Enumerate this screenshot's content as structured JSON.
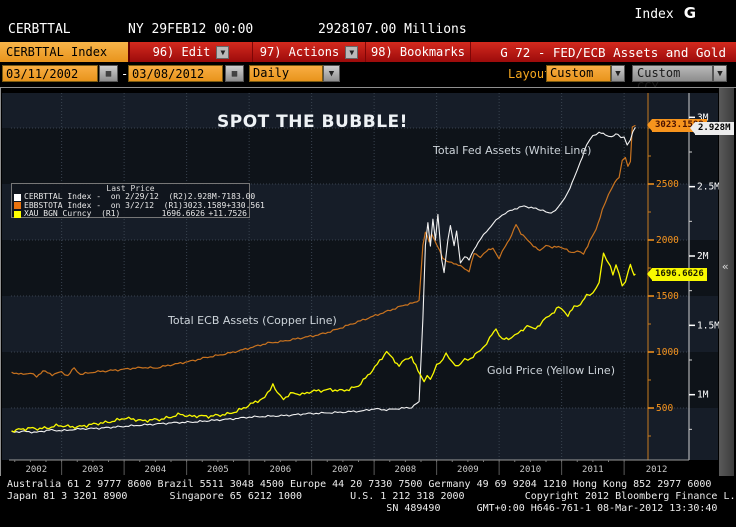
{
  "titlebar": {
    "ticker": "CERBTTAL",
    "session": "NY 29FEB12 00:00",
    "value": "2928107.00 Millions",
    "index_label": "Index",
    "index_key": "G"
  },
  "menubar": {
    "security": "CERBTTAL Index",
    "edit": "96) Edit",
    "actions": "97) Actions",
    "bookmarks": "98) Bookmarks",
    "dropdown_glyph": "▼",
    "screen_title": "G 72 - FED/ECB Assets and Gold"
  },
  "toolbar": {
    "date_from": "03/11/2002",
    "date_to": "03/08/2012",
    "separator": "-",
    "calendar_glyph": "▦",
    "period": "Daily",
    "arrow_glyph": "▼",
    "layout_label": "Layout",
    "layout_value": "Custom",
    "ccy_value": "Custom CCY"
  },
  "legend": {
    "title": "Last Price",
    "rows": [
      {
        "name": "CERBTTAL Index -  on 2/29/12  (R2)",
        "value": "2.928M",
        "change": "-7183.00",
        "color": "#ffffff"
      },
      {
        "name": "EBBSTOTA Index -  on 3/2/12  (R1)",
        "value": "3023.1589",
        "change": "+330.561",
        "color": "#e8720e"
      },
      {
        "name": "XAU BGN Curncy  (R1)",
        "value": "1696.6626",
        "change": "+11.7526",
        "color": "#ffff00"
      }
    ]
  },
  "annotations": {
    "headline": "SPOT THE BUBBLE!",
    "fed": "Total Fed Assets (White Line)",
    "ecb": "Total ECB Assets (Copper Line)",
    "gold": "Gold Price (Yellow Line)"
  },
  "tags": {
    "ecb": "3023.1589",
    "fed": "2.928M",
    "gold": "1696.6626",
    "ecb_color": "#f7941d",
    "fed_color": "#ececec",
    "gold_color": "#f8f800"
  },
  "scroll": {
    "collapse_glyph": "«"
  },
  "footer": {
    "line1": "Australia 61 2 9777 8600 Brazil 5511 3048 4500 Europe 44 20 7330 7500 Germany 49 69 9204 1210 Hong Kong 852 2977 6000",
    "line2": "Japan 81 3 3201 8900       Singapore 65 6212 1000        U.S. 1 212 318 2000          Copyright 2012 Bloomberg Finance L.P.",
    "line3": "                                                               SN 489490      GMT+0:00 H646-761-1 08-Mar-2012 13:30:40"
  },
  "chart_data": {
    "type": "line",
    "title": "SPOT THE BUBBLE!",
    "x_axis": {
      "start": 2002.19,
      "end": 2012.19,
      "start_label": "03/11/2002",
      "end_label": "03/08/2012",
      "year_labels": [
        "2002",
        "2003",
        "2004",
        "2005",
        "2006",
        "2007",
        "2008",
        "2009",
        "2010",
        "2011",
        "2012"
      ],
      "gridline_years": [
        2003,
        2004,
        2005,
        2006,
        2007,
        2008,
        2009,
        2010,
        2011,
        2012
      ],
      "grid": true
    },
    "axis_r1": {
      "side": "right-inner",
      "label_color": "#f7941d",
      "line_color": "#c87c20",
      "min": 0,
      "max": 3250,
      "minor_step": 250,
      "ticks": [
        500,
        1000,
        1500,
        2000,
        2500
      ],
      "gridline_values": [
        500,
        1000,
        1500,
        2000,
        2500,
        3000
      ]
    },
    "axis_r2": {
      "side": "right-outer",
      "label_color": "#ffffff",
      "line_color": "#cfcfcf",
      "min": 0.5,
      "max": 3.125,
      "minor_step": 0.25,
      "ticks": [
        {
          "v": 1,
          "label": "1M"
        },
        {
          "v": 1.5,
          "label": "1.5M"
        },
        {
          "v": 2,
          "label": "2M"
        },
        {
          "v": 2.5,
          "label": "2.5M"
        },
        {
          "v": 3,
          "label": "3M"
        }
      ]
    },
    "series": [
      {
        "name": "EBBSTOTA Index",
        "axis": "R1",
        "color": "#c9731f",
        "width": 1.2,
        "jitter": 1.1,
        "last": "3023.1589",
        "points": [
          [
            2002.2,
            820
          ],
          [
            2002.35,
            800
          ],
          [
            2002.5,
            812
          ],
          [
            2002.6,
            778
          ],
          [
            2002.7,
            832
          ],
          [
            2002.85,
            798
          ],
          [
            2003.0,
            822
          ],
          [
            2003.1,
            788
          ],
          [
            2003.2,
            858
          ],
          [
            2003.3,
            800
          ],
          [
            2003.5,
            820
          ],
          [
            2003.7,
            830
          ],
          [
            2003.9,
            840
          ],
          [
            2004.1,
            852
          ],
          [
            2004.3,
            862
          ],
          [
            2004.5,
            856
          ],
          [
            2004.7,
            880
          ],
          [
            2004.9,
            900
          ],
          [
            2005.1,
            922
          ],
          [
            2005.3,
            950
          ],
          [
            2005.5,
            970
          ],
          [
            2005.7,
            992
          ],
          [
            2005.9,
            1020
          ],
          [
            2006.1,
            1050
          ],
          [
            2006.3,
            1080
          ],
          [
            2006.5,
            1092
          ],
          [
            2006.7,
            1112
          ],
          [
            2006.9,
            1132
          ],
          [
            2007.1,
            1152
          ],
          [
            2007.3,
            1182
          ],
          [
            2007.5,
            1222
          ],
          [
            2007.7,
            1262
          ],
          [
            2007.9,
            1302
          ],
          [
            2008.1,
            1342
          ],
          [
            2008.3,
            1382
          ],
          [
            2008.5,
            1422
          ],
          [
            2008.65,
            1440
          ],
          [
            2008.72,
            1462
          ],
          [
            2008.78,
            1950
          ],
          [
            2008.82,
            2070
          ],
          [
            2008.88,
            1990
          ],
          [
            2008.92,
            2058
          ],
          [
            2009.0,
            1958
          ],
          [
            2009.1,
            1840
          ],
          [
            2009.2,
            1800
          ],
          [
            2009.35,
            1780
          ],
          [
            2009.45,
            1740
          ],
          [
            2009.52,
            1725
          ],
          [
            2009.6,
            1878
          ],
          [
            2009.7,
            1850
          ],
          [
            2009.8,
            1900
          ],
          [
            2009.9,
            1930
          ],
          [
            2010.0,
            1832
          ],
          [
            2010.1,
            1950
          ],
          [
            2010.2,
            2040
          ],
          [
            2010.27,
            2140
          ],
          [
            2010.35,
            2060
          ],
          [
            2010.45,
            2000
          ],
          [
            2010.55,
            1950
          ],
          [
            2010.65,
            1900
          ],
          [
            2010.75,
            1958
          ],
          [
            2010.85,
            1930
          ],
          [
            2010.95,
            1945
          ],
          [
            2011.05,
            1920
          ],
          [
            2011.15,
            1890
          ],
          [
            2011.25,
            1900
          ],
          [
            2011.35,
            1875
          ],
          [
            2011.45,
            1990
          ],
          [
            2011.55,
            2090
          ],
          [
            2011.65,
            2270
          ],
          [
            2011.75,
            2400
          ],
          [
            2011.85,
            2520
          ],
          [
            2011.92,
            2560
          ],
          [
            2011.97,
            2700
          ],
          [
            2012.02,
            2740
          ],
          [
            2012.06,
            2660
          ],
          [
            2012.1,
            2700
          ],
          [
            2012.13,
            3010
          ],
          [
            2012.18,
            3023.16
          ]
        ]
      },
      {
        "name": "CERBTTAL Index",
        "axis": "R2",
        "color": "#f2f2f2",
        "width": 1.1,
        "jitter": 1.0,
        "last": "2.928M",
        "points": [
          [
            2002.2,
            0.73
          ],
          [
            2002.4,
            0.735
          ],
          [
            2002.6,
            0.728
          ],
          [
            2002.8,
            0.745
          ],
          [
            2003.0,
            0.74
          ],
          [
            2003.3,
            0.753
          ],
          [
            2003.6,
            0.758
          ],
          [
            2003.9,
            0.768
          ],
          [
            2004.2,
            0.778
          ],
          [
            2004.5,
            0.788
          ],
          [
            2004.8,
            0.798
          ],
          [
            2005.1,
            0.802
          ],
          [
            2005.4,
            0.814
          ],
          [
            2005.7,
            0.824
          ],
          [
            2006.0,
            0.838
          ],
          [
            2006.3,
            0.844
          ],
          [
            2006.6,
            0.85
          ],
          [
            2006.9,
            0.862
          ],
          [
            2007.2,
            0.868
          ],
          [
            2007.5,
            0.874
          ],
          [
            2007.8,
            0.882
          ],
          [
            2008.0,
            0.898
          ],
          [
            2008.2,
            0.89
          ],
          [
            2008.4,
            0.9
          ],
          [
            2008.6,
            0.908
          ],
          [
            2008.72,
            0.95
          ],
          [
            2008.78,
            1.55
          ],
          [
            2008.82,
            2.08
          ],
          [
            2008.86,
            2.24
          ],
          [
            2008.9,
            2.07
          ],
          [
            2008.94,
            2.26
          ],
          [
            2008.98,
            2.12
          ],
          [
            2009.02,
            2.3
          ],
          [
            2009.08,
            1.98
          ],
          [
            2009.12,
            1.88
          ],
          [
            2009.18,
            2.12
          ],
          [
            2009.22,
            2.22
          ],
          [
            2009.28,
            2.08
          ],
          [
            2009.32,
            2.18
          ],
          [
            2009.38,
            1.95
          ],
          [
            2009.45,
            2.0
          ],
          [
            2009.52,
            1.97
          ],
          [
            2009.6,
            2.05
          ],
          [
            2009.7,
            2.12
          ],
          [
            2009.8,
            2.18
          ],
          [
            2009.9,
            2.23
          ],
          [
            2010.0,
            2.28
          ],
          [
            2010.1,
            2.31
          ],
          [
            2010.25,
            2.34
          ],
          [
            2010.4,
            2.36
          ],
          [
            2010.55,
            2.345
          ],
          [
            2010.7,
            2.33
          ],
          [
            2010.8,
            2.305
          ],
          [
            2010.9,
            2.33
          ],
          [
            2011.0,
            2.38
          ],
          [
            2011.1,
            2.46
          ],
          [
            2011.2,
            2.56
          ],
          [
            2011.3,
            2.68
          ],
          [
            2011.4,
            2.8
          ],
          [
            2011.5,
            2.87
          ],
          [
            2011.6,
            2.89
          ],
          [
            2011.7,
            2.875
          ],
          [
            2011.8,
            2.86
          ],
          [
            2011.9,
            2.88
          ],
          [
            2011.95,
            2.855
          ],
          [
            2012.0,
            2.86
          ],
          [
            2012.05,
            2.8
          ],
          [
            2012.1,
            2.83
          ],
          [
            2012.14,
            2.9
          ],
          [
            2012.18,
            2.928
          ]
        ]
      },
      {
        "name": "XAU BGN Curncy",
        "axis": "R1",
        "color": "#f8f800",
        "width": 1.3,
        "jitter": 1.8,
        "last": "1696.6626",
        "points": [
          [
            2002.2,
            295
          ],
          [
            2002.35,
            310
          ],
          [
            2002.5,
            320
          ],
          [
            2002.65,
            315
          ],
          [
            2002.8,
            325
          ],
          [
            2002.95,
            345
          ],
          [
            2003.1,
            335
          ],
          [
            2003.25,
            330
          ],
          [
            2003.4,
            345
          ],
          [
            2003.55,
            360
          ],
          [
            2003.7,
            370
          ],
          [
            2003.85,
            385
          ],
          [
            2004.0,
            410
          ],
          [
            2004.15,
            400
          ],
          [
            2004.3,
            385
          ],
          [
            2004.45,
            395
          ],
          [
            2004.6,
            400
          ],
          [
            2004.75,
            420
          ],
          [
            2004.9,
            445
          ],
          [
            2005.05,
            425
          ],
          [
            2005.2,
            430
          ],
          [
            2005.35,
            425
          ],
          [
            2005.5,
            435
          ],
          [
            2005.65,
            445
          ],
          [
            2005.8,
            470
          ],
          [
            2005.95,
            510
          ],
          [
            2006.1,
            555
          ],
          [
            2006.25,
            590
          ],
          [
            2006.38,
            715
          ],
          [
            2006.45,
            630
          ],
          [
            2006.55,
            585
          ],
          [
            2006.7,
            635
          ],
          [
            2006.85,
            620
          ],
          [
            2007.0,
            650
          ],
          [
            2007.15,
            655
          ],
          [
            2007.3,
            665
          ],
          [
            2007.45,
            655
          ],
          [
            2007.6,
            665
          ],
          [
            2007.75,
            700
          ],
          [
            2007.9,
            790
          ],
          [
            2008.05,
            890
          ],
          [
            2008.2,
            1005
          ],
          [
            2008.3,
            935
          ],
          [
            2008.4,
            880
          ],
          [
            2008.5,
            930
          ],
          [
            2008.6,
            960
          ],
          [
            2008.7,
            830
          ],
          [
            2008.8,
            740
          ],
          [
            2008.85,
            800
          ],
          [
            2008.9,
            745
          ],
          [
            2009.0,
            880
          ],
          [
            2009.1,
            940
          ],
          [
            2009.15,
            985
          ],
          [
            2009.25,
            900
          ],
          [
            2009.35,
            880
          ],
          [
            2009.45,
            930
          ],
          [
            2009.55,
            945
          ],
          [
            2009.65,
            990
          ],
          [
            2009.75,
            1045
          ],
          [
            2009.85,
            1120
          ],
          [
            2009.95,
            1210
          ],
          [
            2010.05,
            1110
          ],
          [
            2010.15,
            1120
          ],
          [
            2010.25,
            1150
          ],
          [
            2010.35,
            1180
          ],
          [
            2010.45,
            1240
          ],
          [
            2010.55,
            1200
          ],
          [
            2010.65,
            1245
          ],
          [
            2010.75,
            1300
          ],
          [
            2010.85,
            1345
          ],
          [
            2010.95,
            1400
          ],
          [
            2011.05,
            1360
          ],
          [
            2011.1,
            1330
          ],
          [
            2011.2,
            1400
          ],
          [
            2011.3,
            1430
          ],
          [
            2011.4,
            1500
          ],
          [
            2011.5,
            1530
          ],
          [
            2011.6,
            1620
          ],
          [
            2011.67,
            1890
          ],
          [
            2011.72,
            1820
          ],
          [
            2011.78,
            1780
          ],
          [
            2011.82,
            1680
          ],
          [
            2011.87,
            1770
          ],
          [
            2011.92,
            1700
          ],
          [
            2011.97,
            1590
          ],
          [
            2012.02,
            1640
          ],
          [
            2012.07,
            1720
          ],
          [
            2012.1,
            1780
          ],
          [
            2012.13,
            1720
          ],
          [
            2012.16,
            1690
          ],
          [
            2012.18,
            1696.66
          ]
        ]
      }
    ]
  }
}
